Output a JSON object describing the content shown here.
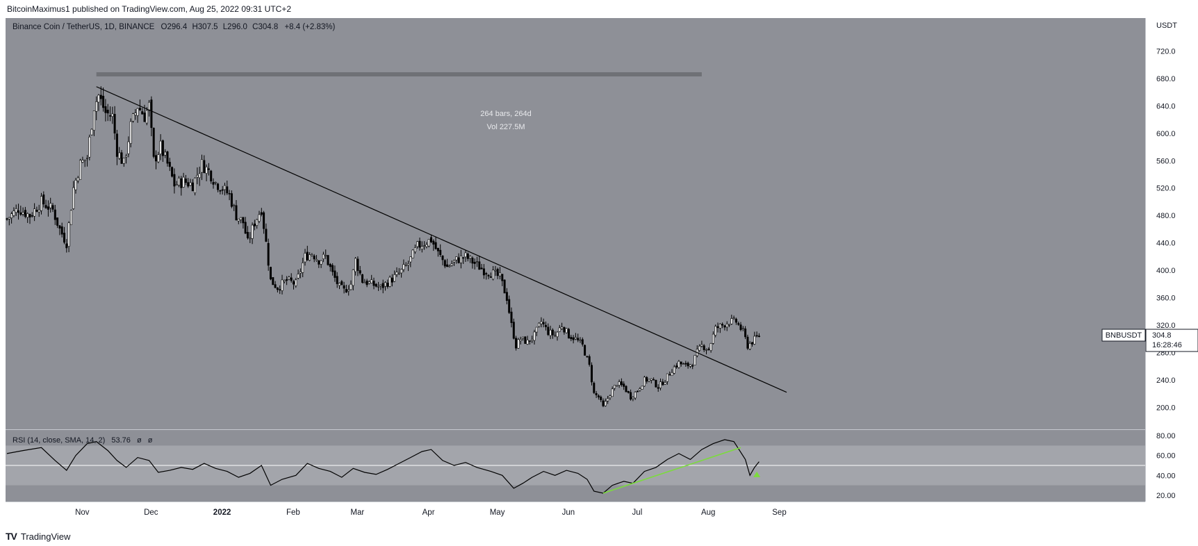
{
  "header": {
    "published": "BitcoinMaximus1 published on TradingView.com, Aug 25, 2022 09:31 UTC+2"
  },
  "footer": {
    "brand": "TradingView",
    "logo": "TV"
  },
  "colors": {
    "pane_bg": "#8e9097",
    "rsi_band": "#a3a5ab",
    "axis_bg": "#ffffff",
    "candle": "#000000",
    "trendline": "#000000",
    "rsi_line": "#000000",
    "rsi_trend": "#7cdc3c",
    "range_bar": "#6f7176"
  },
  "chart_data": {
    "type": "candlestick",
    "symbol_line": {
      "name": "Binance Coin / TetherUS, 1D, BINANCE",
      "o_label": "O",
      "o": "296.4",
      "h_label": "H",
      "h": "307.5",
      "l_label": "L",
      "l": "296.0",
      "c_label": "C",
      "c": "304.8",
      "change": "+8.4 (+2.83%)"
    },
    "price_axis": {
      "unit": "USDT",
      "ticks": [
        "720.0",
        "680.0",
        "640.0",
        "600.0",
        "560.0",
        "520.0",
        "480.0",
        "440.0",
        "400.0",
        "360.0",
        "320.0",
        "280.0",
        "240.0",
        "200.0"
      ],
      "range": [
        172,
        760
      ]
    },
    "time_axis": {
      "labels": [
        "Nov",
        "Dec",
        "2022",
        "Feb",
        "Mar",
        "Apr",
        "May",
        "Jun",
        "Jul",
        "Aug",
        "Sep"
      ]
    },
    "price_tag": {
      "symbol": "BNBUSDT",
      "price": "304.8",
      "countdown": "16:28:46"
    },
    "measure": {
      "bars": "264 bars, 264d",
      "volume": "Vol 227.5M",
      "from": "2021-11-09",
      "to": "2022-07-31",
      "price": 686
    },
    "trendline": {
      "start": [
        "2021-11-09",
        668
      ],
      "end": [
        "2022-09-06",
        222
      ]
    },
    "closes": [
      [
        "2021-10-01",
        475
      ],
      [
        "2021-10-06",
        490
      ],
      [
        "2021-10-11",
        480
      ],
      [
        "2021-10-16",
        500
      ],
      [
        "2021-10-21",
        488
      ],
      [
        "2021-10-24",
        460
      ],
      [
        "2021-10-27",
        440
      ],
      [
        "2021-10-30",
        520
      ],
      [
        "2021-11-02",
        555
      ],
      [
        "2021-11-05",
        565
      ],
      [
        "2021-11-08",
        640
      ],
      [
        "2021-11-10",
        655
      ],
      [
        "2021-11-13",
        630
      ],
      [
        "2021-11-16",
        625
      ],
      [
        "2021-11-18",
        575
      ],
      [
        "2021-11-21",
        555
      ],
      [
        "2021-11-24",
        610
      ],
      [
        "2021-11-27",
        640
      ],
      [
        "2021-11-30",
        625
      ],
      [
        "2021-12-02",
        640
      ],
      [
        "2021-12-04",
        560
      ],
      [
        "2021-12-07",
        580
      ],
      [
        "2021-12-10",
        555
      ],
      [
        "2021-12-13",
        525
      ],
      [
        "2021-12-17",
        530
      ],
      [
        "2021-12-21",
        525
      ],
      [
        "2021-12-25",
        555
      ],
      [
        "2021-12-28",
        545
      ],
      [
        "2021-12-31",
        528
      ],
      [
        "2022-01-03",
        520
      ],
      [
        "2022-01-06",
        510
      ],
      [
        "2022-01-09",
        480
      ],
      [
        "2022-01-12",
        470
      ],
      [
        "2022-01-14",
        440
      ],
      [
        "2022-01-17",
        470
      ],
      [
        "2022-01-20",
        490
      ],
      [
        "2022-01-22",
        440
      ],
      [
        "2022-01-24",
        385
      ],
      [
        "2022-01-27",
        375
      ],
      [
        "2022-01-31",
        385
      ],
      [
        "2022-02-04",
        380
      ],
      [
        "2022-02-08",
        420
      ],
      [
        "2022-02-11",
        425
      ],
      [
        "2022-02-14",
        415
      ],
      [
        "2022-02-17",
        420
      ],
      [
        "2022-02-20",
        395
      ],
      [
        "2022-02-23",
        375
      ],
      [
        "2022-02-25",
        370
      ],
      [
        "2022-02-28",
        380
      ],
      [
        "2022-03-02",
        415
      ],
      [
        "2022-03-05",
        385
      ],
      [
        "2022-03-09",
        380
      ],
      [
        "2022-03-13",
        375
      ],
      [
        "2022-03-17",
        385
      ],
      [
        "2022-03-21",
        395
      ],
      [
        "2022-03-25",
        410
      ],
      [
        "2022-03-29",
        435
      ],
      [
        "2022-04-01",
        440
      ],
      [
        "2022-04-04",
        445
      ],
      [
        "2022-04-07",
        425
      ],
      [
        "2022-04-11",
        405
      ],
      [
        "2022-04-15",
        415
      ],
      [
        "2022-04-19",
        420
      ],
      [
        "2022-04-23",
        410
      ],
      [
        "2022-04-27",
        400
      ],
      [
        "2022-05-01",
        395
      ],
      [
        "2022-05-04",
        390
      ],
      [
        "2022-05-07",
        360
      ],
      [
        "2022-05-09",
        320
      ],
      [
        "2022-05-11",
        290
      ],
      [
        "2022-05-13",
        300
      ],
      [
        "2022-05-16",
        295
      ],
      [
        "2022-05-19",
        305
      ],
      [
        "2022-05-22",
        325
      ],
      [
        "2022-05-25",
        310
      ],
      [
        "2022-05-28",
        305
      ],
      [
        "2022-05-31",
        320
      ],
      [
        "2022-06-03",
        305
      ],
      [
        "2022-06-06",
        300
      ],
      [
        "2022-06-09",
        290
      ],
      [
        "2022-06-12",
        260
      ],
      [
        "2022-06-14",
        220
      ],
      [
        "2022-06-16",
        215
      ],
      [
        "2022-06-18",
        200
      ],
      [
        "2022-06-21",
        220
      ],
      [
        "2022-06-24",
        235
      ],
      [
        "2022-06-27",
        230
      ],
      [
        "2022-06-30",
        215
      ],
      [
        "2022-07-03",
        225
      ],
      [
        "2022-07-06",
        240
      ],
      [
        "2022-07-09",
        240
      ],
      [
        "2022-07-12",
        230
      ],
      [
        "2022-07-15",
        240
      ],
      [
        "2022-07-18",
        255
      ],
      [
        "2022-07-21",
        265
      ],
      [
        "2022-07-24",
        260
      ],
      [
        "2022-07-27",
        265
      ],
      [
        "2022-07-29",
        280
      ],
      [
        "2022-07-31",
        290
      ],
      [
        "2022-08-03",
        285
      ],
      [
        "2022-08-06",
        315
      ],
      [
        "2022-08-09",
        320
      ],
      [
        "2022-08-12",
        325
      ],
      [
        "2022-08-15",
        325
      ],
      [
        "2022-08-18",
        310
      ],
      [
        "2022-08-20",
        290
      ],
      [
        "2022-08-22",
        296
      ],
      [
        "2022-08-25",
        304.8
      ]
    ],
    "rsi": {
      "legend": {
        "name": "RSI (14, close, SMA, 14, 2)",
        "value": "53.76",
        "na1": "ø",
        "na2": "ø"
      },
      "ticks": [
        "80.00",
        "60.00",
        "40.00",
        "20.00"
      ],
      "range": [
        15,
        85
      ],
      "band": [
        30,
        70
      ],
      "values": [
        [
          "2021-10-01",
          62
        ],
        [
          "2021-10-08",
          65
        ],
        [
          "2021-10-16",
          68
        ],
        [
          "2021-10-22",
          55
        ],
        [
          "2021-10-27",
          45
        ],
        [
          "2021-10-31",
          60
        ],
        [
          "2021-11-05",
          72
        ],
        [
          "2021-11-09",
          74
        ],
        [
          "2021-11-14",
          65
        ],
        [
          "2021-11-18",
          55
        ],
        [
          "2021-11-22",
          48
        ],
        [
          "2021-11-27",
          58
        ],
        [
          "2021-12-02",
          55
        ],
        [
          "2021-12-06",
          43
        ],
        [
          "2021-12-11",
          45
        ],
        [
          "2021-12-16",
          48
        ],
        [
          "2021-12-21",
          46
        ],
        [
          "2021-12-26",
          52
        ],
        [
          "2021-12-31",
          47
        ],
        [
          "2022-01-05",
          44
        ],
        [
          "2022-01-10",
          38
        ],
        [
          "2022-01-15",
          42
        ],
        [
          "2022-01-20",
          50
        ],
        [
          "2022-01-24",
          30
        ],
        [
          "2022-01-29",
          36
        ],
        [
          "2022-02-04",
          40
        ],
        [
          "2022-02-09",
          52
        ],
        [
          "2022-02-14",
          47
        ],
        [
          "2022-02-19",
          44
        ],
        [
          "2022-02-24",
          38
        ],
        [
          "2022-03-01",
          47
        ],
        [
          "2022-03-06",
          43
        ],
        [
          "2022-03-11",
          41
        ],
        [
          "2022-03-16",
          46
        ],
        [
          "2022-03-21",
          52
        ],
        [
          "2022-03-26",
          58
        ],
        [
          "2022-03-31",
          64
        ],
        [
          "2022-04-04",
          66
        ],
        [
          "2022-04-09",
          55
        ],
        [
          "2022-04-14",
          50
        ],
        [
          "2022-04-19",
          53
        ],
        [
          "2022-04-24",
          48
        ],
        [
          "2022-04-30",
          44
        ],
        [
          "2022-05-05",
          40
        ],
        [
          "2022-05-10",
          27
        ],
        [
          "2022-05-14",
          32
        ],
        [
          "2022-05-18",
          38
        ],
        [
          "2022-05-23",
          44
        ],
        [
          "2022-05-28",
          40
        ],
        [
          "2022-06-02",
          45
        ],
        [
          "2022-06-07",
          42
        ],
        [
          "2022-06-11",
          36
        ],
        [
          "2022-06-14",
          24
        ],
        [
          "2022-06-18",
          22
        ],
        [
          "2022-06-22",
          30
        ],
        [
          "2022-06-27",
          34
        ],
        [
          "2022-07-01",
          32
        ],
        [
          "2022-07-06",
          44
        ],
        [
          "2022-07-11",
          48
        ],
        [
          "2022-07-16",
          56
        ],
        [
          "2022-07-21",
          62
        ],
        [
          "2022-07-26",
          56
        ],
        [
          "2022-07-31",
          66
        ],
        [
          "2022-08-05",
          72
        ],
        [
          "2022-08-10",
          76
        ],
        [
          "2022-08-14",
          74
        ],
        [
          "2022-08-19",
          56
        ],
        [
          "2022-08-21",
          40
        ],
        [
          "2022-08-23",
          48
        ],
        [
          "2022-08-25",
          53.76
        ]
      ],
      "trendline": {
        "start": [
          "2022-06-18",
          22
        ],
        "end": [
          "2022-08-17",
          68
        ]
      },
      "marker": [
        "2022-08-24",
        41
      ]
    }
  }
}
